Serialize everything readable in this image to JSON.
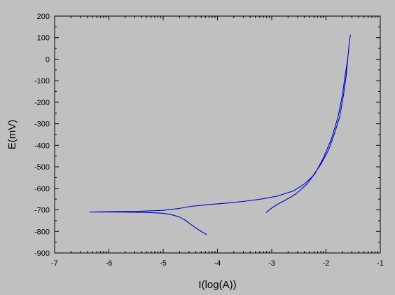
{
  "colors": {
    "background": "#c0c0c0",
    "plot_background": "#c0c0c0",
    "axes": "#000000",
    "series": "#0000cc"
  },
  "chart_data": {
    "type": "line",
    "title": "",
    "xlabel": "I(log(A))",
    "ylabel": "E(mV)",
    "xlim": [
      -7,
      -1
    ],
    "ylim": [
      -900,
      200
    ],
    "grid": false,
    "legend": "none",
    "x_ticks": [
      "-7",
      "-6",
      "-5",
      "-4",
      "-3",
      "-2",
      "-1"
    ],
    "y_ticks": [
      "200",
      "100",
      "0",
      "-100",
      "-200",
      "-300",
      "-400",
      "-500",
      "-600",
      "-700",
      "-800",
      "-900"
    ],
    "series": [
      {
        "color": "#0000cc",
        "points": [
          [
            -4.2,
            -815
          ],
          [
            -4.3,
            -800
          ],
          [
            -4.4,
            -784
          ],
          [
            -4.5,
            -765
          ],
          [
            -4.6,
            -747
          ],
          [
            -4.7,
            -733
          ],
          [
            -4.85,
            -722
          ],
          [
            -5.0,
            -716
          ],
          [
            -5.2,
            -713
          ],
          [
            -5.5,
            -711
          ],
          [
            -5.9,
            -710
          ],
          [
            -6.35,
            -710
          ],
          [
            -6.0,
            -708
          ],
          [
            -5.5,
            -707
          ],
          [
            -5.0,
            -702
          ],
          [
            -4.7,
            -693
          ],
          [
            -4.5,
            -684
          ],
          [
            -4.2,
            -676
          ],
          [
            -4.0,
            -672
          ],
          [
            -3.8,
            -668
          ],
          [
            -3.5,
            -660
          ],
          [
            -3.2,
            -650
          ],
          [
            -2.9,
            -636
          ],
          [
            -2.6,
            -612
          ],
          [
            -2.4,
            -580
          ],
          [
            -2.25,
            -545
          ],
          [
            -2.1,
            -490
          ],
          [
            -1.95,
            -420
          ],
          [
            -1.85,
            -350
          ],
          [
            -1.75,
            -270
          ],
          [
            -1.68,
            -170
          ],
          [
            -1.63,
            -80
          ],
          [
            -1.6,
            0
          ],
          [
            -1.57,
            80
          ],
          [
            -1.55,
            112
          ],
          [
            -1.57,
            80
          ],
          [
            -1.6,
            0
          ],
          [
            -1.65,
            -80
          ],
          [
            -1.7,
            -170
          ],
          [
            -1.78,
            -270
          ],
          [
            -1.9,
            -370
          ],
          [
            -2.05,
            -460
          ],
          [
            -2.2,
            -530
          ],
          [
            -2.35,
            -580
          ],
          [
            -2.55,
            -625
          ],
          [
            -2.75,
            -655
          ],
          [
            -2.9,
            -675
          ],
          [
            -3.02,
            -695
          ],
          [
            -3.1,
            -712
          ]
        ]
      }
    ]
  }
}
